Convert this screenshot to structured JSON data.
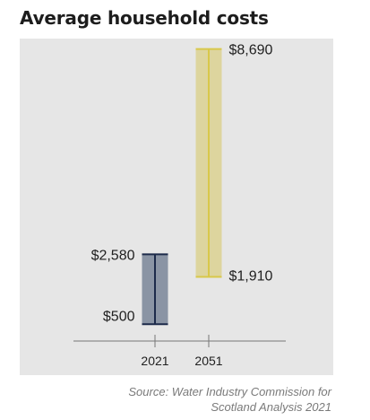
{
  "title": "Average household costs",
  "source_line1": "Source: Water Industry Commission for",
  "source_line2": "Scotland Analysis 2021",
  "colors": {
    "background_panel": "#e6e6e6",
    "series_2021_fill": "#8a94a4",
    "series_2021_edge": "#1c2a4a",
    "series_2051_fill": "#ddd59e",
    "series_2051_edge": "#d8c84a",
    "axis": "#777777"
  },
  "chart_data": {
    "type": "bar",
    "subtype": "range",
    "title": "Average household costs",
    "xlabel": "",
    "ylabel": "",
    "ylim": [
      0,
      9000
    ],
    "grid": false,
    "categories": [
      "2021",
      "2051"
    ],
    "ranges": [
      {
        "category": "2021",
        "low": 500,
        "high": 2580,
        "low_label": "$500",
        "high_label": "$2,580"
      },
      {
        "category": "2051",
        "low": 1910,
        "high": 8690,
        "low_label": "$1,910",
        "high_label": "$8,690"
      }
    ]
  }
}
